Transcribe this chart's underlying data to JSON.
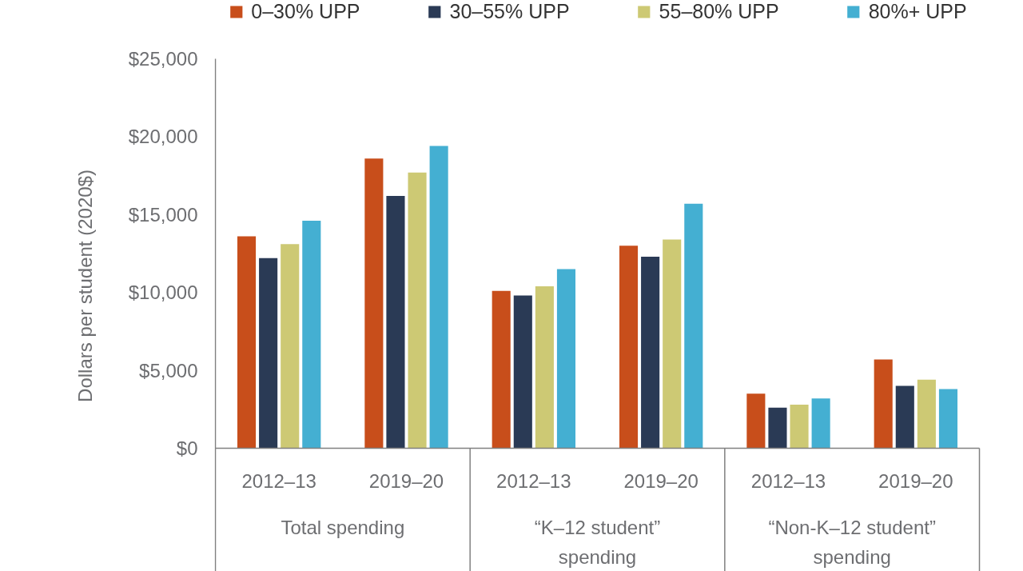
{
  "chart_data": {
    "type": "bar",
    "categories": [
      "2012–13",
      "2019–20",
      "2012–13",
      "2019–20",
      "2012–13",
      "2019–20"
    ],
    "annotations": [
      "Total spending",
      "“K–12 student”\nspending",
      "“Non-K–12 student”\nspending"
    ],
    "ylabel": "Dollars per student (2020$)",
    "series": [
      {
        "name": "0–30% UPP",
        "color": "#c84e1b",
        "values": [
          13600,
          18600,
          10100,
          13000,
          3500,
          5700
        ]
      },
      {
        "name": "30–55% UPP",
        "color": "#2a3a55",
        "values": [
          12200,
          16200,
          9800,
          12300,
          2600,
          4000
        ]
      },
      {
        "name": "55–80% UPP",
        "color": "#cdc974",
        "values": [
          13100,
          17700,
          10400,
          13400,
          2800,
          4400
        ]
      },
      {
        "name": "80%+ UPP",
        "color": "#44afd2",
        "values": [
          14600,
          19400,
          11500,
          15700,
          3200,
          3800
        ]
      }
    ],
    "ylim": [
      0,
      25000
    ],
    "yticks": [
      {
        "value": 0,
        "label": "$0"
      },
      {
        "value": 5000,
        "label": "$5,000"
      },
      {
        "value": 10000,
        "label": "$10,000"
      },
      {
        "value": 15000,
        "label": "$15,000"
      },
      {
        "value": 20000,
        "label": "$20,000"
      },
      {
        "value": 25000,
        "label": "$25,000"
      }
    ],
    "grid": false,
    "legend": "top"
  }
}
